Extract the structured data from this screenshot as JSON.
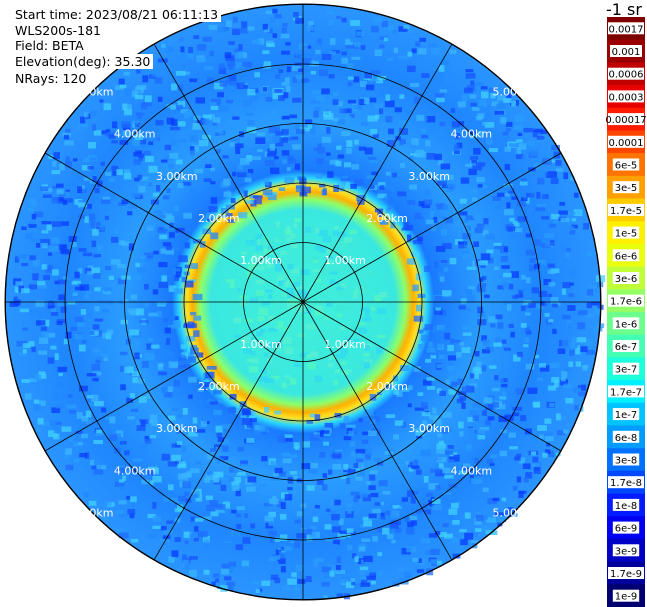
{
  "header": {
    "start_time": "Start time: 2023/08/21 06:11:13",
    "instrument": "WLS200s-181",
    "field": "Field: BETA",
    "elevation": "Elevation(deg): 35.30",
    "nrays": "NRays: 120"
  },
  "colorbar": {
    "unit": "-1 sr",
    "labels": [
      "0.0017",
      "0.001",
      "0.0006",
      "0.0003",
      "0.00017",
      "0.0001",
      "6e-5",
      "3e-5",
      "1.7e-5",
      "1e-5",
      "6e-6",
      "3e-6",
      "1.7e-6",
      "1e-6",
      "6e-7",
      "3e-7",
      "1.7e-7",
      "1e-7",
      "6e-8",
      "3e-8",
      "1.7e-8",
      "1e-8",
      "6e-9",
      "3e-9",
      "1.7e-9",
      "1e-9"
    ],
    "colors": [
      "#7f0000",
      "#9a0000",
      "#c00000",
      "#e60000",
      "#ff1a00",
      "#ff4600",
      "#ff7400",
      "#ffa000",
      "#ffcc00",
      "#fff000",
      "#e9ff0e",
      "#c0ff37",
      "#93ff64",
      "#6bff8c",
      "#44ffb3",
      "#1cffdb",
      "#00f0ff",
      "#00c4ff",
      "#009cff",
      "#0070ff",
      "#0048ff",
      "#001cff",
      "#0000f3",
      "#0000c4",
      "#00009c",
      "#000070"
    ]
  },
  "chart_data": {
    "type": "heatmap",
    "projection": "polar (PPI scan)",
    "field": "BETA",
    "elevation_deg": 35.3,
    "n_rays": 120,
    "range_rings_km": [
      1.0,
      2.0,
      3.0,
      4.0,
      5.0
    ],
    "range_labels": [
      "1.00km",
      "2.00km",
      "3.00km",
      "4.00km",
      "5.00km"
    ],
    "max_range_km": 5.0,
    "azimuth_spokes_deg": [
      0,
      30,
      60,
      90,
      120,
      150,
      180,
      210,
      240,
      270,
      300,
      330
    ],
    "colorscale": "jet (log scale, 1e-9 to 0.0017 m-1 sr-1)",
    "approx_profile": [
      {
        "range_km": 0.0,
        "beta": 1e-06
      },
      {
        "range_km": 1.0,
        "beta": 1.5e-06
      },
      {
        "range_km": 1.4,
        "beta": 3e-06
      },
      {
        "range_km": 1.65,
        "beta": 3e-05
      },
      {
        "range_km": 1.85,
        "beta": 6e-06
      },
      {
        "range_km": 2.2,
        "beta": 6e-08
      },
      {
        "range_km": 3.0,
        "beta": 5e-08
      },
      {
        "range_km": 4.0,
        "beta": 5e-08
      },
      {
        "range_km": 5.0,
        "beta": 4e-08
      }
    ]
  }
}
